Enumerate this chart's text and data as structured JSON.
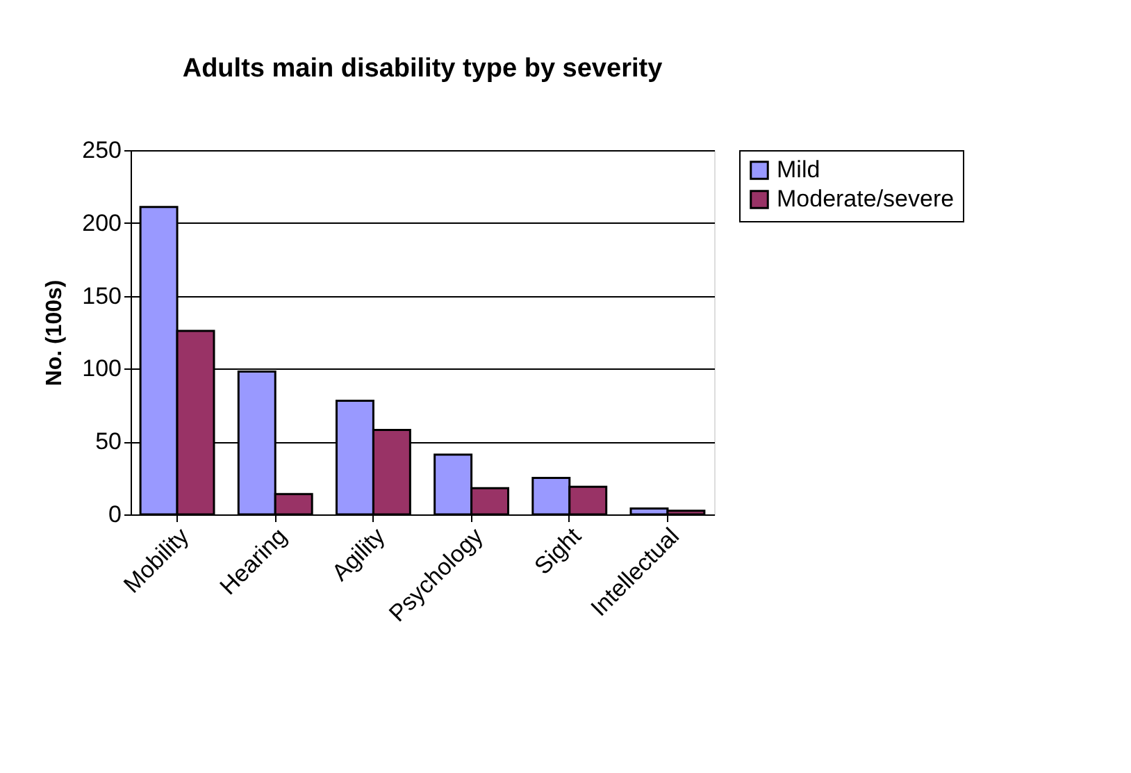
{
  "chart_data": {
    "type": "bar",
    "title": "Adults main disability type by severity",
    "ylabel": "No. (100s)",
    "categories": [
      "Mobility",
      "Hearing",
      "Agility",
      "Psychology",
      "Sight",
      "Intellectual"
    ],
    "series": [
      {
        "name": "Mild",
        "color": "#9999ff",
        "values": [
          211,
          98,
          78,
          41,
          25,
          4
        ]
      },
      {
        "name": "Moderate/severe",
        "color": "#993366",
        "values": [
          126,
          14,
          58,
          18,
          19,
          2.5
        ]
      }
    ],
    "ylim": [
      0,
      250
    ],
    "yticks": [
      0,
      50,
      100,
      150,
      200,
      250
    ],
    "grid": "y",
    "legend": "right"
  }
}
